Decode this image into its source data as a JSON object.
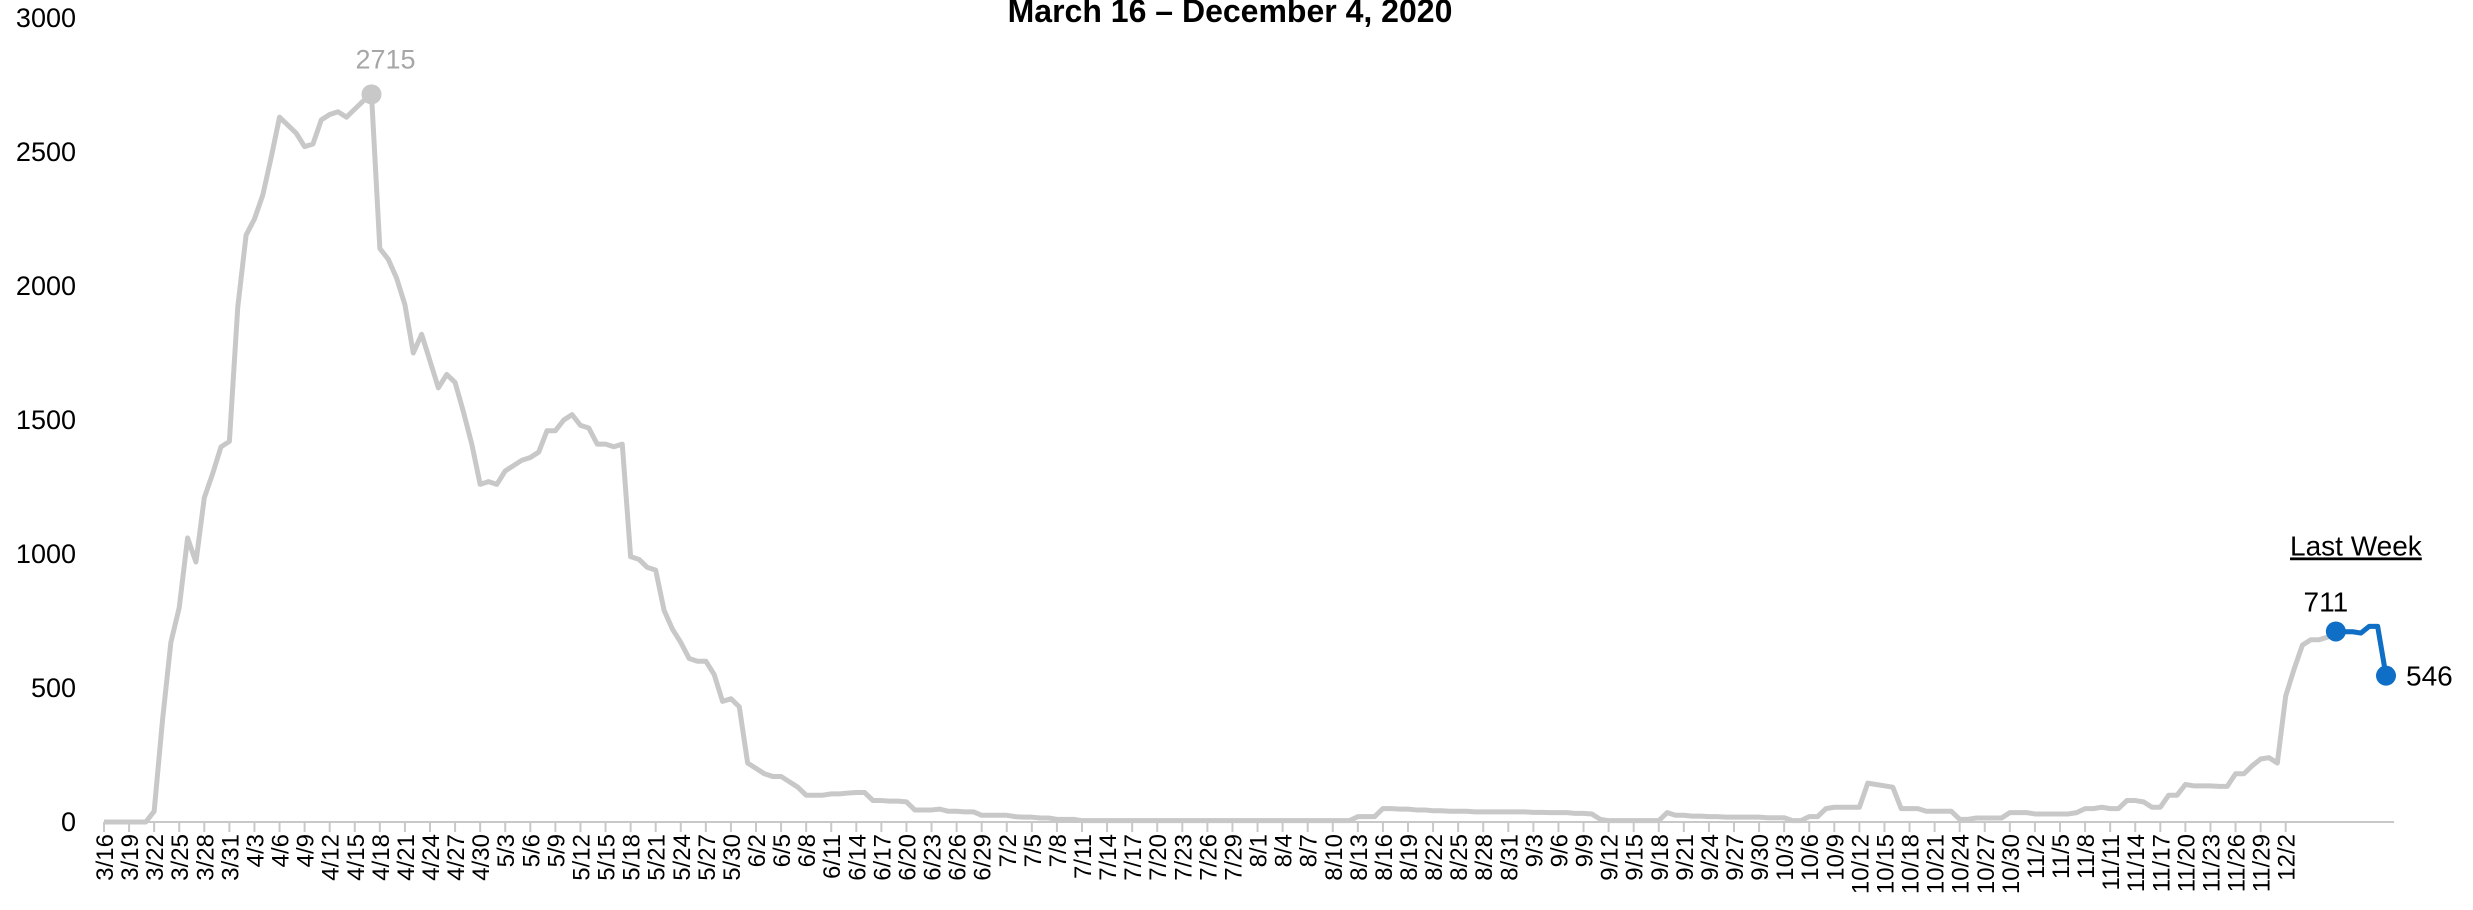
{
  "chart_data": {
    "type": "line",
    "title": "March 16 – December 4, 2020",
    "ylim": [
      0,
      3000
    ],
    "yticks": [
      0,
      500,
      1000,
      1500,
      2000,
      2500,
      3000
    ],
    "grid": false,
    "legend": "none",
    "start_date": "2020-03-16",
    "x_tick_labels": [
      "3/16",
      "3/19",
      "3/22",
      "3/25",
      "3/28",
      "3/31",
      "4/3",
      "4/6",
      "4/9",
      "4/12",
      "4/15",
      "4/18",
      "4/21",
      "4/24",
      "4/27",
      "4/30",
      "5/3",
      "5/6",
      "5/9",
      "5/12",
      "5/15",
      "5/18",
      "5/21",
      "5/24",
      "5/27",
      "5/30",
      "6/2",
      "6/5",
      "6/8",
      "6/11",
      "6/14",
      "6/17",
      "6/20",
      "6/23",
      "6/26",
      "6/29",
      "7/2",
      "7/5",
      "7/8",
      "7/11",
      "7/14",
      "7/17",
      "7/20",
      "7/23",
      "7/26",
      "7/29",
      "8/1",
      "8/4",
      "8/7",
      "8/10",
      "8/13",
      "8/16",
      "8/19",
      "8/22",
      "8/25",
      "8/28",
      "8/31",
      "9/3",
      "9/6",
      "9/9",
      "9/12",
      "9/15",
      "9/18",
      "9/21",
      "9/24",
      "9/27",
      "9/30",
      "10/3",
      "10/6",
      "10/9",
      "10/12",
      "10/15",
      "10/18",
      "10/21",
      "10/24",
      "10/27",
      "10/30",
      "11/2",
      "11/5",
      "11/8",
      "11/11",
      "11/14",
      "11/17",
      "11/20",
      "11/23",
      "11/26",
      "11/29",
      "12/2"
    ],
    "values": [
      0,
      0,
      0,
      0,
      0,
      0,
      40,
      380,
      670,
      800,
      1060,
      970,
      1210,
      1300,
      1400,
      1420,
      1920,
      2190,
      2250,
      2340,
      2480,
      2630,
      2600,
      2570,
      2520,
      2530,
      2620,
      2640,
      2650,
      2630,
      2660,
      2690,
      2715,
      2140,
      2100,
      2030,
      1930,
      1750,
      1820,
      1720,
      1620,
      1670,
      1640,
      1530,
      1410,
      1260,
      1270,
      1260,
      1310,
      1330,
      1350,
      1360,
      1380,
      1460,
      1460,
      1500,
      1520,
      1480,
      1470,
      1410,
      1410,
      1400,
      1410,
      990,
      980,
      950,
      940,
      790,
      720,
      670,
      610,
      600,
      600,
      550,
      450,
      460,
      430,
      220,
      200,
      180,
      170,
      170,
      150,
      130,
      100,
      100,
      100,
      105,
      105,
      108,
      110,
      110,
      80,
      80,
      78,
      78,
      75,
      45,
      45,
      45,
      48,
      40,
      40,
      38,
      38,
      25,
      25,
      25,
      25,
      20,
      18,
      18,
      15,
      15,
      10,
      10,
      10,
      5,
      5,
      5,
      5,
      5,
      5,
      5,
      5,
      5,
      5,
      5,
      5,
      5,
      5,
      5,
      5,
      5,
      5,
      5,
      5,
      5,
      5,
      5,
      5,
      5,
      5,
      5,
      5,
      5,
      5,
      5,
      5,
      5,
      20,
      20,
      20,
      50,
      50,
      48,
      48,
      45,
      45,
      42,
      42,
      40,
      40,
      40,
      38,
      38,
      38,
      38,
      38,
      38,
      38,
      36,
      36,
      35,
      35,
      35,
      32,
      32,
      30,
      10,
      5,
      5,
      5,
      5,
      5,
      5,
      5,
      35,
      25,
      25,
      22,
      22,
      20,
      20,
      18,
      18,
      18,
      18,
      18,
      16,
      16,
      16,
      5,
      5,
      20,
      20,
      50,
      55,
      55,
      55,
      55,
      145,
      140,
      135,
      130,
      50,
      50,
      50,
      40,
      40,
      40,
      40,
      10,
      10,
      15,
      15,
      15,
      15,
      35,
      35,
      35,
      30,
      30,
      30,
      30,
      30,
      35,
      50,
      50,
      55,
      50,
      50,
      80,
      80,
      75,
      55,
      55,
      100,
      100,
      140,
      135,
      135,
      135,
      133,
      133,
      180,
      180,
      210,
      235,
      240,
      220,
      470,
      570,
      660,
      680,
      680,
      690,
      711,
      710,
      710,
      705,
      730,
      730,
      546
    ],
    "peak": {
      "value": 2715,
      "label": "2715"
    },
    "last_week": {
      "label": "Last Week",
      "values": [
        711,
        710,
        710,
        705,
        730,
        730,
        546
      ],
      "start_label": "711",
      "end_label": "546"
    },
    "colors": {
      "main_line": "#c8c8c8",
      "last_week_line": "#0f6fc6",
      "peak_marker": "#c8c8c8",
      "peak_label": "#a6a6a6",
      "axis": "#c8c8c8"
    }
  }
}
